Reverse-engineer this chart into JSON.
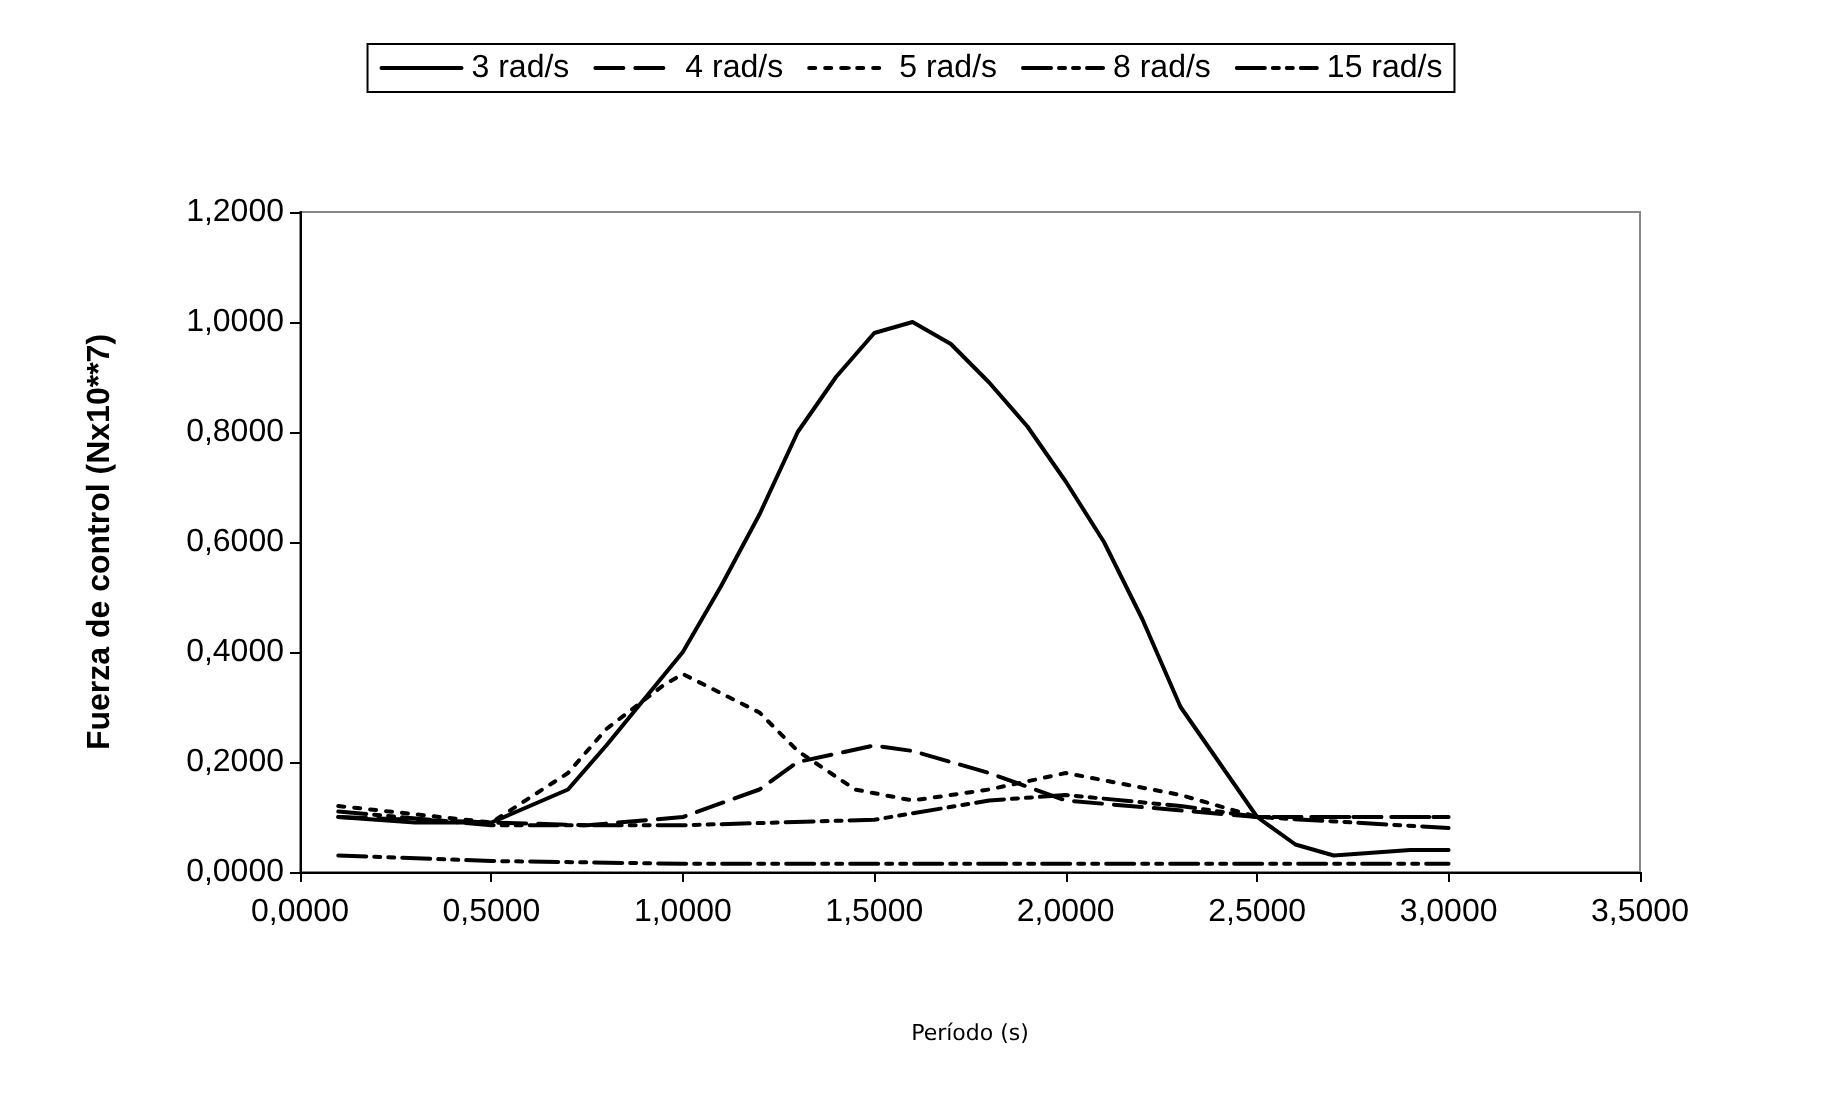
{
  "chart_data": {
    "type": "line",
    "xlabel": "Período (s)",
    "ylabel": "Fuerza de control (Nx10**7)",
    "xlim": [
      0,
      3.5
    ],
    "ylim": [
      0,
      1.2
    ],
    "xticks": [
      {
        "value": 0,
        "label": "0,0000"
      },
      {
        "value": 0.5,
        "label": "0,5000"
      },
      {
        "value": 1,
        "label": "1,0000"
      },
      {
        "value": 1.5,
        "label": "1,5000"
      },
      {
        "value": 2,
        "label": "2,0000"
      },
      {
        "value": 2.5,
        "label": "2,5000"
      },
      {
        "value": 3,
        "label": "3,0000"
      },
      {
        "value": 3.5,
        "label": "3,5000"
      }
    ],
    "yticks": [
      {
        "value": 0,
        "label": "0,0000"
      },
      {
        "value": 0.2,
        "label": "0,2000"
      },
      {
        "value": 0.4,
        "label": "0,4000"
      },
      {
        "value": 0.6,
        "label": "0,6000"
      },
      {
        "value": 0.8,
        "label": "0,8000"
      },
      {
        "value": 1,
        "label": "1,0000"
      },
      {
        "value": 1.2,
        "label": "1,2000"
      }
    ],
    "grid": false,
    "legend": "top",
    "marker": "none",
    "series": [
      {
        "name": "3 rad/s",
        "color": "#000000",
        "line_style": "solid",
        "x": [
          0.1,
          0.3,
          0.5,
          0.7,
          0.8,
          1.0,
          1.1,
          1.2,
          1.3,
          1.4,
          1.5,
          1.6,
          1.7,
          1.8,
          1.9,
          2.0,
          2.1,
          2.2,
          2.3,
          2.4,
          2.5,
          2.6,
          2.7,
          2.8,
          2.9,
          3.0
        ],
        "values": [
          0.1,
          0.09,
          0.09,
          0.15,
          0.23,
          0.4,
          0.52,
          0.65,
          0.8,
          0.9,
          0.98,
          1.0,
          0.96,
          0.89,
          0.81,
          0.71,
          0.6,
          0.46,
          0.3,
          0.2,
          0.1,
          0.05,
          0.03,
          0.035,
          0.04,
          0.04
        ]
      },
      {
        "name": "4 rad/s",
        "color": "#000000",
        "line_style": "dashed",
        "x": [
          0.1,
          0.5,
          0.75,
          1.0,
          1.2,
          1.3,
          1.5,
          1.6,
          1.8,
          2.0,
          2.5,
          3.0
        ],
        "values": [
          0.1,
          0.09,
          0.085,
          0.1,
          0.15,
          0.2,
          0.23,
          0.22,
          0.18,
          0.13,
          0.1,
          0.1
        ]
      },
      {
        "name": "5 rad/s",
        "color": "#000000",
        "line_style": "dotted",
        "x": [
          0.1,
          0.5,
          0.7,
          0.8,
          0.95,
          1.0,
          1.2,
          1.3,
          1.45,
          1.6,
          1.8,
          2.0,
          2.3,
          2.5,
          3.0
        ],
        "values": [
          0.12,
          0.09,
          0.18,
          0.26,
          0.34,
          0.36,
          0.29,
          0.22,
          0.15,
          0.13,
          0.15,
          0.18,
          0.14,
          0.1,
          0.1
        ]
      },
      {
        "name": "8 rad/s",
        "color": "#000000",
        "line_style": "dashdot",
        "x": [
          0.1,
          0.5,
          1.0,
          1.5,
          1.8,
          2.0,
          2.3,
          2.5,
          3.0
        ],
        "values": [
          0.11,
          0.085,
          0.085,
          0.095,
          0.13,
          0.14,
          0.12,
          0.1,
          0.08
        ]
      },
      {
        "name": "15 rad/s",
        "color": "#000000",
        "line_style": "dashdot",
        "x": [
          0.1,
          0.5,
          1.0,
          1.5,
          2.0,
          2.5,
          3.0
        ],
        "values": [
          0.03,
          0.02,
          0.015,
          0.015,
          0.015,
          0.015,
          0.015
        ]
      }
    ]
  }
}
